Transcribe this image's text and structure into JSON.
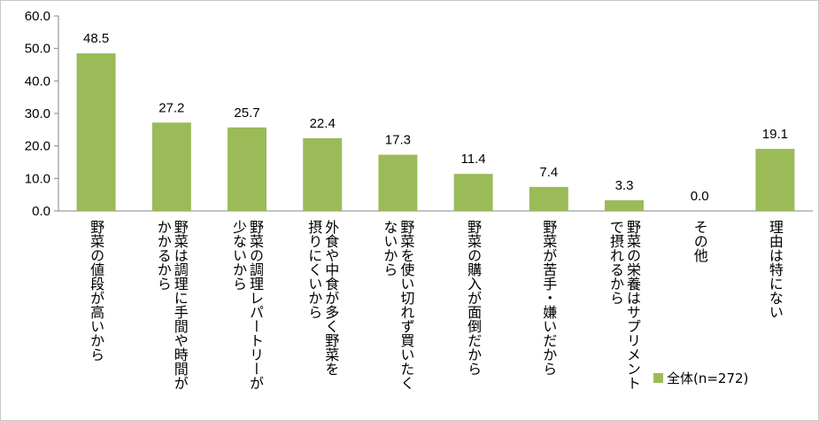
{
  "chart_data": {
    "type": "bar",
    "categories": [
      [
        "野菜の値段が高いから"
      ],
      [
        "野菜は調理に手間や時間が",
        "かかるから"
      ],
      [
        "野菜の調理レパートリーが",
        "少ないから"
      ],
      [
        "外食や中食が多く野菜を",
        "摂りにくいから"
      ],
      [
        "野菜を使い切れず買いたく",
        "ないから"
      ],
      [
        "野菜の購入が面倒だから"
      ],
      [
        "野菜が苦手・嫌いだから"
      ],
      [
        "野菜の栄養はサプリメント",
        "で摂れるから"
      ],
      [
        "その他"
      ],
      [
        "理由は特にない"
      ]
    ],
    "series": [
      {
        "name": "全体(n=272)",
        "values": [
          48.5,
          27.2,
          25.7,
          22.4,
          17.3,
          11.4,
          7.4,
          3.3,
          0.0,
          19.1
        ]
      }
    ],
    "data_labels": [
      "48.5",
      "27.2",
      "25.7",
      "22.4",
      "17.3",
      "11.4",
      "7.4",
      "3.3",
      "0.0",
      "19.1"
    ],
    "yticks": [
      "0.0",
      "10.0",
      "20.0",
      "30.0",
      "40.0",
      "50.0",
      "60.0"
    ],
    "ylim": [
      0,
      60
    ],
    "grid": false,
    "legend": {
      "position": "bottom-right"
    },
    "bar_color": "#9bbb59"
  }
}
